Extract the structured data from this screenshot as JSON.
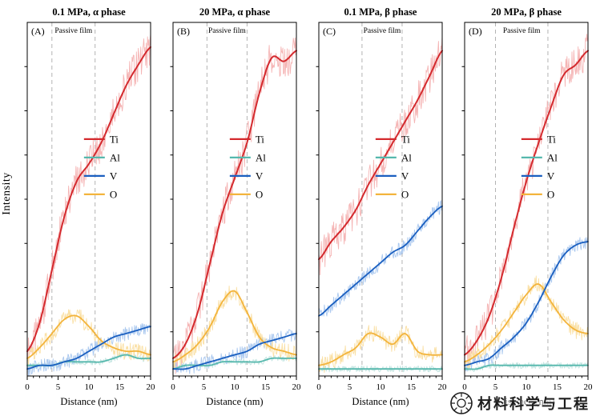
{
  "figure": {
    "watermark_text": "材料科学与工程",
    "watermark_logo": "round-seal-logo"
  },
  "chart_data": {
    "type": "line",
    "title": "",
    "x_label": "Distance (nm)",
    "y_label": "Intensity",
    "x_range": [
      0,
      20
    ],
    "x_ticks": [
      0,
      5,
      10,
      15,
      20
    ],
    "grid": false,
    "legend_position": "center-right-of-each-panel",
    "legend": [
      "Ti",
      "Al",
      "V",
      "O"
    ],
    "colors": {
      "Ti": "#d42a2e",
      "Al": "#56b8ad",
      "V": "#1a5fc0",
      "O": "#f3b43c"
    },
    "noise_colors": {
      "Ti": "#f5b5b5",
      "Al": "#c3e5e1",
      "V": "#aac8ef",
      "O": "#fae0a5"
    },
    "noise_amp": {
      "Ti": 0.05,
      "Al": 0.009,
      "V": 0.02,
      "O": 0.024
    },
    "dashed_line_color": "#b3b3b3",
    "anchors_x": [
      0,
      2,
      4,
      6,
      8,
      10,
      12,
      14,
      16,
      18,
      20
    ],
    "panels": [
      {
        "label": "(A)",
        "title": "0.1 MPa, α phase",
        "passive_film_label": "Passive film",
        "dashed_lines_nm": [
          4,
          11
        ],
        "series": {
          "Ti": [
            0.07,
            0.15,
            0.3,
            0.45,
            0.55,
            0.6,
            0.66,
            0.74,
            0.82,
            0.88,
            0.93
          ],
          "Al": [
            0.03,
            0.03,
            0.03,
            0.04,
            0.04,
            0.04,
            0.04,
            0.05,
            0.06,
            0.05,
            0.05
          ],
          "V": [
            0.02,
            0.03,
            0.03,
            0.04,
            0.05,
            0.07,
            0.09,
            0.11,
            0.12,
            0.13,
            0.14
          ],
          "O": [
            0.05,
            0.08,
            0.12,
            0.16,
            0.17,
            0.14,
            0.1,
            0.08,
            0.07,
            0.07,
            0.06
          ]
        }
      },
      {
        "label": "(B)",
        "title": "20 MPa, α phase",
        "passive_film_label": "Passive film",
        "dashed_lines_nm": [
          5.5,
          12
        ],
        "series": {
          "Ti": [
            0.05,
            0.09,
            0.18,
            0.32,
            0.46,
            0.56,
            0.66,
            0.8,
            0.9,
            0.89,
            0.92
          ],
          "Al": [
            0.02,
            0.03,
            0.03,
            0.03,
            0.04,
            0.04,
            0.04,
            0.04,
            0.05,
            0.05,
            0.05
          ],
          "V": [
            0.02,
            0.02,
            0.03,
            0.04,
            0.05,
            0.06,
            0.07,
            0.09,
            0.1,
            0.11,
            0.12
          ],
          "O": [
            0.04,
            0.06,
            0.09,
            0.14,
            0.21,
            0.24,
            0.18,
            0.11,
            0.08,
            0.07,
            0.06
          ]
        }
      },
      {
        "label": "(C)",
        "title": "0.1 MPa, β phase",
        "passive_film_label": "Passive film",
        "dashed_lines_nm": [
          7,
          13.5
        ],
        "series": {
          "Ti": [
            0.33,
            0.38,
            0.42,
            0.47,
            0.54,
            0.6,
            0.66,
            0.72,
            0.78,
            0.85,
            0.92
          ],
          "Al": [
            0.02,
            0.02,
            0.02,
            0.02,
            0.02,
            0.02,
            0.02,
            0.02,
            0.02,
            0.02,
            0.02
          ],
          "V": [
            0.17,
            0.2,
            0.23,
            0.26,
            0.29,
            0.32,
            0.35,
            0.37,
            0.41,
            0.45,
            0.48
          ],
          "O": [
            0.03,
            0.04,
            0.06,
            0.08,
            0.12,
            0.11,
            0.09,
            0.12,
            0.07,
            0.06,
            0.06
          ]
        }
      },
      {
        "label": "(D)",
        "title": "20 MPa, β phase",
        "passive_film_label": "Passive film",
        "dashed_lines_nm": [
          5,
          13.5
        ],
        "series": {
          "Ti": [
            0.06,
            0.1,
            0.17,
            0.28,
            0.42,
            0.55,
            0.66,
            0.76,
            0.85,
            0.88,
            0.92
          ],
          "Al": [
            0.02,
            0.02,
            0.03,
            0.03,
            0.03,
            0.03,
            0.03,
            0.03,
            0.03,
            0.03,
            0.03
          ],
          "V": [
            0.03,
            0.04,
            0.05,
            0.08,
            0.11,
            0.15,
            0.21,
            0.28,
            0.34,
            0.37,
            0.38
          ],
          "O": [
            0.04,
            0.06,
            0.09,
            0.13,
            0.18,
            0.23,
            0.26,
            0.21,
            0.16,
            0.13,
            0.12
          ]
        }
      }
    ]
  }
}
